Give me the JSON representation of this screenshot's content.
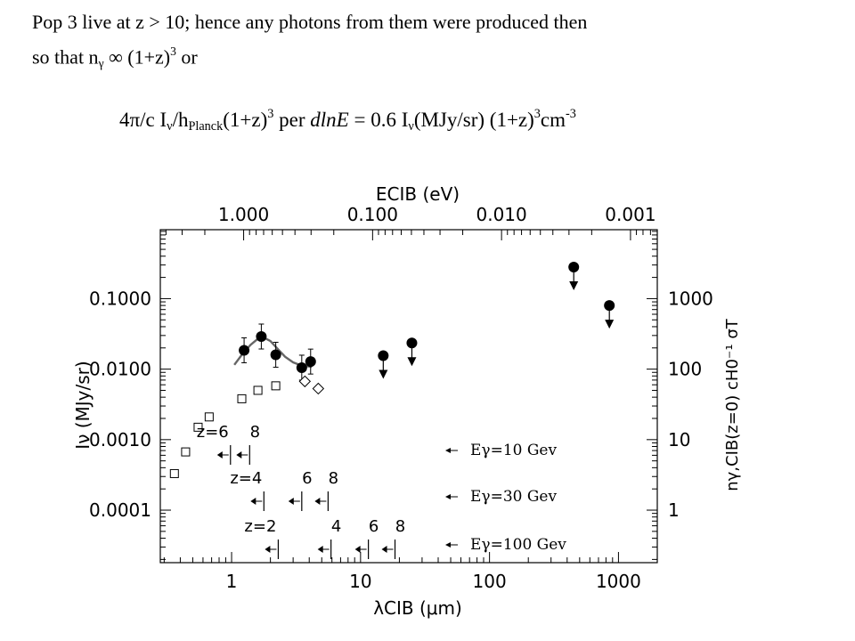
{
  "slide": {
    "line1": "Pop 3 live at z > 10; hence any photons from them were produced then",
    "line2_a": "so that n",
    "line2_sub": "γ",
    "line2_b": " ∞ (1+z)",
    "line2_sup": "3",
    "line2_c": " or",
    "formula": {
      "a": "4π/c I",
      "sub1": "ν",
      "b": "/h",
      "sub2": "Planck",
      "c": "(1+z)",
      "sup1": "3",
      "d": " per ",
      "e": "dlnE",
      "f": " = 0.6 I",
      "sub3": "ν",
      "g": "(MJy/sr) (1+z)",
      "sup2": "3",
      "h": "cm",
      "sup3": "-3"
    }
  },
  "chart_data": {
    "type": "scatter",
    "xscale": "log",
    "yscale": "log",
    "xlim": [
      0.28,
      2000
    ],
    "ylim": [
      1.8e-05,
      0.95
    ],
    "xlabel": "λCIB (μm)",
    "ylabel": "Iν (MJy/sr)",
    "top_axis_label": "ECIB (eV)",
    "right_axis_label": "nγ,CIB(z=0) cH0⁻¹ σT",
    "x_tick_labels": [
      "1",
      "10",
      "100",
      "1000"
    ],
    "y_tick_labels": [
      "0.1000",
      "0.0100",
      "0.0010",
      "0.0001"
    ],
    "top_tick_labels": [
      "1.000",
      "0.100",
      "0.010",
      "0.001"
    ],
    "right_tick_labels": [
      "1000",
      "100",
      "10",
      "1"
    ],
    "grid": false,
    "series": [
      {
        "marker": "filled-circle",
        "points": [
          {
            "x": 1.25,
            "y": 0.0185,
            "err": true
          },
          {
            "x": 1.7,
            "y": 0.029,
            "err": true
          },
          {
            "x": 2.2,
            "y": 0.016,
            "err": true
          },
          {
            "x": 3.5,
            "y": 0.0105,
            "err": true
          },
          {
            "x": 4.1,
            "y": 0.0128,
            "err": true
          },
          {
            "x": 15,
            "y": 0.0155,
            "upper_limit": true
          },
          {
            "x": 25,
            "y": 0.0235,
            "upper_limit": true
          },
          {
            "x": 450,
            "y": 0.28,
            "upper_limit": true
          },
          {
            "x": 850,
            "y": 0.08,
            "upper_limit": true
          }
        ]
      },
      {
        "marker": "open-square",
        "points": [
          {
            "x": 0.36,
            "y": 0.00033
          },
          {
            "x": 0.44,
            "y": 0.00067
          },
          {
            "x": 0.55,
            "y": 0.0015
          },
          {
            "x": 0.67,
            "y": 0.0021
          },
          {
            "x": 1.2,
            "y": 0.0038
          },
          {
            "x": 1.6,
            "y": 0.005
          },
          {
            "x": 2.2,
            "y": 0.0058
          }
        ]
      },
      {
        "marker": "open-diamond",
        "points": [
          {
            "x": 3.7,
            "y": 0.0067
          },
          {
            "x": 4.7,
            "y": 0.0053
          }
        ]
      },
      {
        "marker": "curve",
        "points": [
          {
            "x": 1.05,
            "y": 0.0115
          },
          {
            "x": 1.2,
            "y": 0.016
          },
          {
            "x": 1.4,
            "y": 0.022
          },
          {
            "x": 1.6,
            "y": 0.027
          },
          {
            "x": 1.75,
            "y": 0.0285
          },
          {
            "x": 2.0,
            "y": 0.025
          },
          {
            "x": 2.3,
            "y": 0.019
          },
          {
            "x": 2.6,
            "y": 0.015
          },
          {
            "x": 3.0,
            "y": 0.0125
          },
          {
            "x": 3.5,
            "y": 0.0112
          },
          {
            "x": 4.2,
            "y": 0.0108
          }
        ]
      }
    ],
    "threshold_rows": [
      {
        "label": "z=6",
        "ticks": [
          {
            "x": 0.98,
            "label": ""
          },
          {
            "x": 1.38,
            "label": "8"
          }
        ],
        "energy": "Eγ=10 Gev"
      },
      {
        "label": "z=4",
        "ticks": [
          {
            "x": 1.78,
            "label": ""
          },
          {
            "x": 3.5,
            "label": "6"
          },
          {
            "x": 5.6,
            "label": "8"
          }
        ],
        "energy": "Eγ=30 Gev"
      },
      {
        "label": "z=2",
        "ticks": [
          {
            "x": 2.3,
            "label": ""
          },
          {
            "x": 5.9,
            "label": "4"
          },
          {
            "x": 11.5,
            "label": "6"
          },
          {
            "x": 18.5,
            "label": "8"
          }
        ],
        "energy": "Eγ=100 Gev"
      }
    ]
  }
}
